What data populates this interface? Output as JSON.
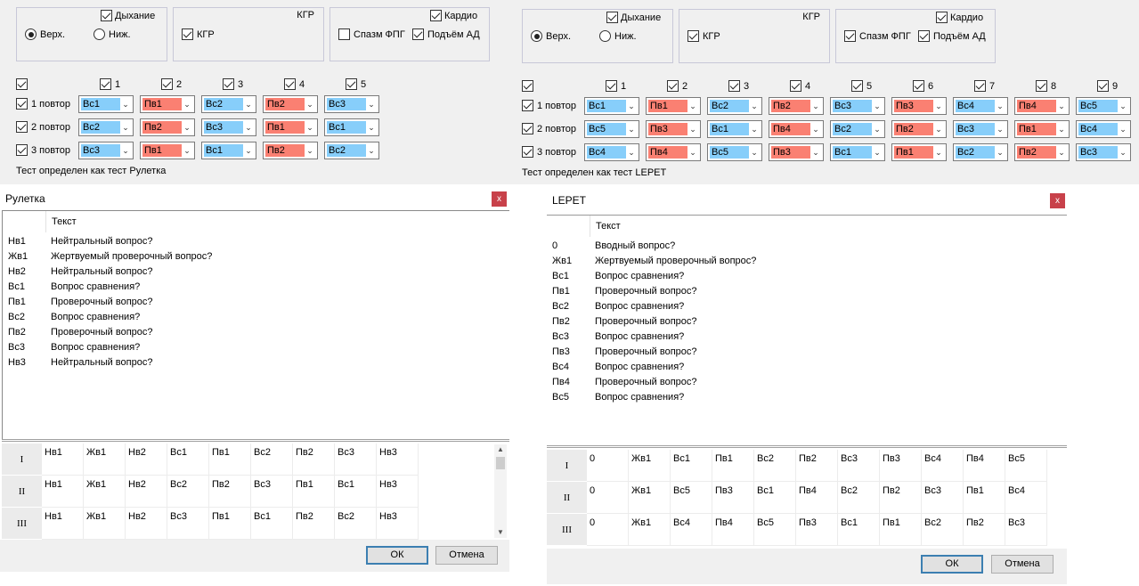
{
  "left": {
    "breathing": {
      "label": "Дыхание",
      "checked": true,
      "upper": "Верх.",
      "lower": "Ниж.",
      "selected": "upper"
    },
    "kgr": {
      "title": "КГР",
      "checkbox_label": "КГР",
      "checked": true
    },
    "cardio": {
      "label": "Кардио",
      "checked": true,
      "spasm": "Спазм ФПГ",
      "spasm_checked": false,
      "bp": "Подъём АД",
      "bp_checked": true
    },
    "col_headers": [
      "1",
      "2",
      "3",
      "4",
      "5"
    ],
    "rows": [
      {
        "label": "1 повтор",
        "values": [
          "Вс1",
          "Пв1",
          "Вс2",
          "Пв2",
          "Вс3"
        ]
      },
      {
        "label": "2 повтор",
        "values": [
          "Вс2",
          "Пв2",
          "Вс3",
          "Пв1",
          "Вс1"
        ]
      },
      {
        "label": "3 повтор",
        "values": [
          "Вс3",
          "Пв1",
          "Вс1",
          "Пв2",
          "Вс2"
        ]
      }
    ],
    "status": "Тест определен как тест Рулетка"
  },
  "right": {
    "breathing": {
      "label": "Дыхание",
      "checked": true,
      "upper": "Верх.",
      "lower": "Ниж.",
      "selected": "upper"
    },
    "kgr": {
      "title": "КГР",
      "checkbox_label": "КГР",
      "checked": true
    },
    "cardio": {
      "label": "Кардио",
      "checked": true,
      "spasm": "Спазм ФПГ",
      "spasm_checked": true,
      "bp": "Подъём АД",
      "bp_checked": true
    },
    "col_headers": [
      "1",
      "2",
      "3",
      "4",
      "5",
      "6",
      "7",
      "8",
      "9"
    ],
    "rows": [
      {
        "label": "1 повтор",
        "values": [
          "Вс1",
          "Пв1",
          "Вс2",
          "Пв2",
          "Вс3",
          "Пв3",
          "Вс4",
          "Пв4",
          "Вс5"
        ]
      },
      {
        "label": "2 повтор",
        "values": [
          "Вс5",
          "Пв3",
          "Вс1",
          "Пв4",
          "Вс2",
          "Пв2",
          "Вс3",
          "Пв1",
          "Вс4"
        ]
      },
      {
        "label": "3 повтор",
        "values": [
          "Вс4",
          "Пв4",
          "Вс5",
          "Пв3",
          "Вс1",
          "Пв1",
          "Вс2",
          "Пв2",
          "Вс3"
        ]
      }
    ],
    "status": "Тест определен как тест LEPET"
  },
  "dialog_left": {
    "title": "Рулетка",
    "close": "x",
    "list_header": "Текст",
    "items": [
      {
        "code": "Нв1",
        "text": "Нейтральный вопрос?"
      },
      {
        "code": "Жв1",
        "text": "Жертвуемый проверочный вопрос?"
      },
      {
        "code": "Нв2",
        "text": "Нейтральный вопрос?"
      },
      {
        "code": "Вс1",
        "text": "Вопрос сравнения?"
      },
      {
        "code": "Пв1",
        "text": "Проверочный вопрос?"
      },
      {
        "code": "Вс2",
        "text": "Вопрос сравнения?"
      },
      {
        "code": "Пв2",
        "text": "Проверочный вопрос?"
      },
      {
        "code": "Вс3",
        "text": "Вопрос сравнения?"
      },
      {
        "code": "Нв3",
        "text": "Нейтральный вопрос?"
      }
    ],
    "grid": [
      {
        "label": "I",
        "cells": [
          "Нв1",
          "Жв1",
          "Нв2",
          "Вс1",
          "Пв1",
          "Вс2",
          "Пв2",
          "Вс3",
          "Нв3"
        ]
      },
      {
        "label": "II",
        "cells": [
          "Нв1",
          "Жв1",
          "Нв2",
          "Вс2",
          "Пв2",
          "Вс3",
          "Пв1",
          "Вс1",
          "Нв3"
        ]
      },
      {
        "label": "III",
        "cells": [
          "Нв1",
          "Жв1",
          "Нв2",
          "Вс3",
          "Пв1",
          "Вс1",
          "Пв2",
          "Вс2",
          "Нв3"
        ]
      }
    ],
    "ok": "ОК",
    "cancel": "Отмена"
  },
  "dialog_right": {
    "title": "LEPET",
    "close": "x",
    "list_header": "Текст",
    "items": [
      {
        "code": "0",
        "text": "Вводный вопрос?"
      },
      {
        "code": "Жв1",
        "text": "Жертвуемый проверочный вопрос?"
      },
      {
        "code": "Вс1",
        "text": "Вопрос сравнения?"
      },
      {
        "code": "Пв1",
        "text": "Проверочный вопрос?"
      },
      {
        "code": "Вс2",
        "text": "Вопрос сравнения?"
      },
      {
        "code": "Пв2",
        "text": "Проверочный вопрос?"
      },
      {
        "code": "Вс3",
        "text": "Вопрос сравнения?"
      },
      {
        "code": "Пв3",
        "text": "Проверочный вопрос?"
      },
      {
        "code": "Вс4",
        "text": "Вопрос сравнения?"
      },
      {
        "code": "Пв4",
        "text": "Проверочный вопрос?"
      },
      {
        "code": "Вс5",
        "text": "Вопрос сравнения?"
      }
    ],
    "grid": [
      {
        "label": "I",
        "cells": [
          "0",
          "Жв1",
          "Вс1",
          "Пв1",
          "Вс2",
          "Пв2",
          "Вс3",
          "Пв3",
          "Вс4",
          "Пв4",
          "Вс5"
        ]
      },
      {
        "label": "II",
        "cells": [
          "0",
          "Жв1",
          "Вс5",
          "Пв3",
          "Вс1",
          "Пв4",
          "Вс2",
          "Пв2",
          "Вс3",
          "Пв1",
          "Вс4"
        ]
      },
      {
        "label": "III",
        "cells": [
          "0",
          "Жв1",
          "Вс4",
          "Пв4",
          "Вс5",
          "Пв3",
          "Вс1",
          "Пв1",
          "Вс2",
          "Пв2",
          "Вс3"
        ]
      }
    ],
    "ok": "ОК",
    "cancel": "Отмена"
  },
  "colors": {
    "vs": "#87cefa",
    "pv": "#fa8072",
    "panel": "#f0f0f0",
    "close": "#c8414a"
  }
}
